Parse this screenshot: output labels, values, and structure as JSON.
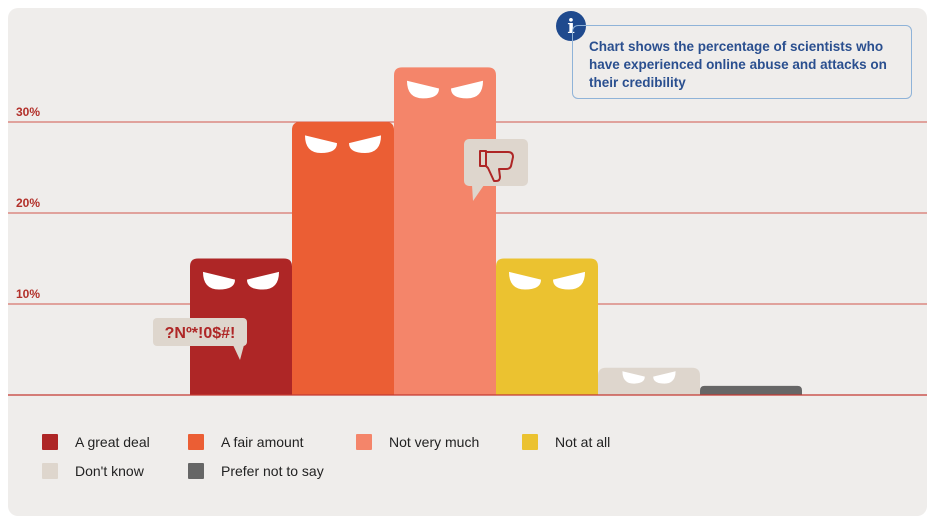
{
  "info": {
    "text": "Chart shows the percentage of scientists who have experienced online abuse and attacks on their credibility",
    "icon": "info-icon"
  },
  "speech_bubbles": {
    "curse_text": "?Nº*!0$#!",
    "thumbs_icon": "thumbs-down-icon"
  },
  "chart_data": {
    "type": "bar",
    "title": "",
    "xlabel": "",
    "ylabel": "",
    "ylim": [
      0,
      35
    ],
    "yticks": [
      {
        "value": 10,
        "label": "10%"
      },
      {
        "value": 20,
        "label": "20%"
      },
      {
        "value": 30,
        "label": "30%"
      }
    ],
    "grid": true,
    "legend_position": "bottom",
    "categories": [
      "A great deal",
      "A fair amount",
      "Not very much",
      "Not at all",
      "Don't know",
      "Prefer not to say"
    ],
    "values": [
      15,
      30,
      36,
      15,
      3,
      1
    ],
    "colors": [
      "#ae2626",
      "#eb5e34",
      "#f4856a",
      "#ebc230",
      "#ded6cd",
      "#666666"
    ]
  }
}
